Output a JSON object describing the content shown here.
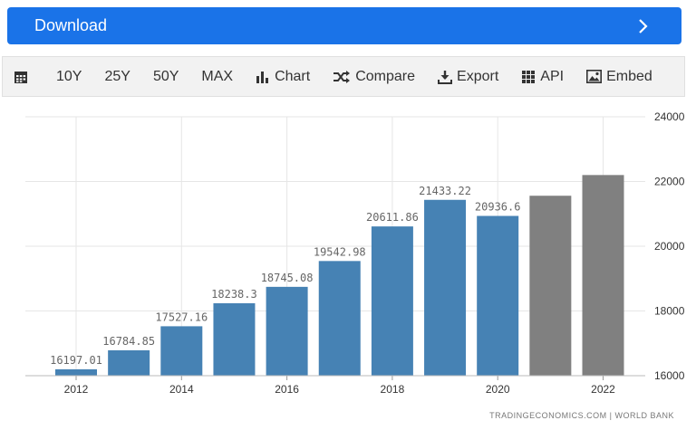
{
  "download": {
    "label": "Download"
  },
  "toolbar": {
    "ranges": [
      "10Y",
      "25Y",
      "50Y",
      "MAX"
    ],
    "chart_label": "Chart",
    "compare_label": "Compare",
    "export_label": "Export",
    "api_label": "API",
    "embed_label": "Embed"
  },
  "source": "TRADINGECONOMICS.COM | WORLD BANK",
  "colors": {
    "accent": "#1a73e8",
    "historical": "#4682b4",
    "forecast": "#808080"
  },
  "chart_data": {
    "type": "bar",
    "x": [
      2012,
      2013,
      2014,
      2015,
      2016,
      2017,
      2018,
      2019,
      2020,
      2021,
      2022
    ],
    "values": [
      16197.01,
      16784.85,
      17527.16,
      18238.3,
      18745.08,
      19542.98,
      20611.86,
      21433.22,
      20936.6,
      21560,
      22200
    ],
    "data_labels": [
      "16197.01",
      "16784.85",
      "17527.16",
      "18238.3",
      "18745.08",
      "19542.98",
      "20611.86",
      "21433.22",
      "20936.6",
      "",
      ""
    ],
    "forecast_from_index": 9,
    "xticks": [
      "2012",
      "2014",
      "2016",
      "2018",
      "2020",
      "2022"
    ],
    "yticks": [
      "16000",
      "18000",
      "20000",
      "22000",
      "24000"
    ],
    "ylim": [
      16000,
      24000
    ],
    "y_axis_side": "right",
    "grid": true,
    "title": "",
    "xlabel": "",
    "ylabel": ""
  }
}
